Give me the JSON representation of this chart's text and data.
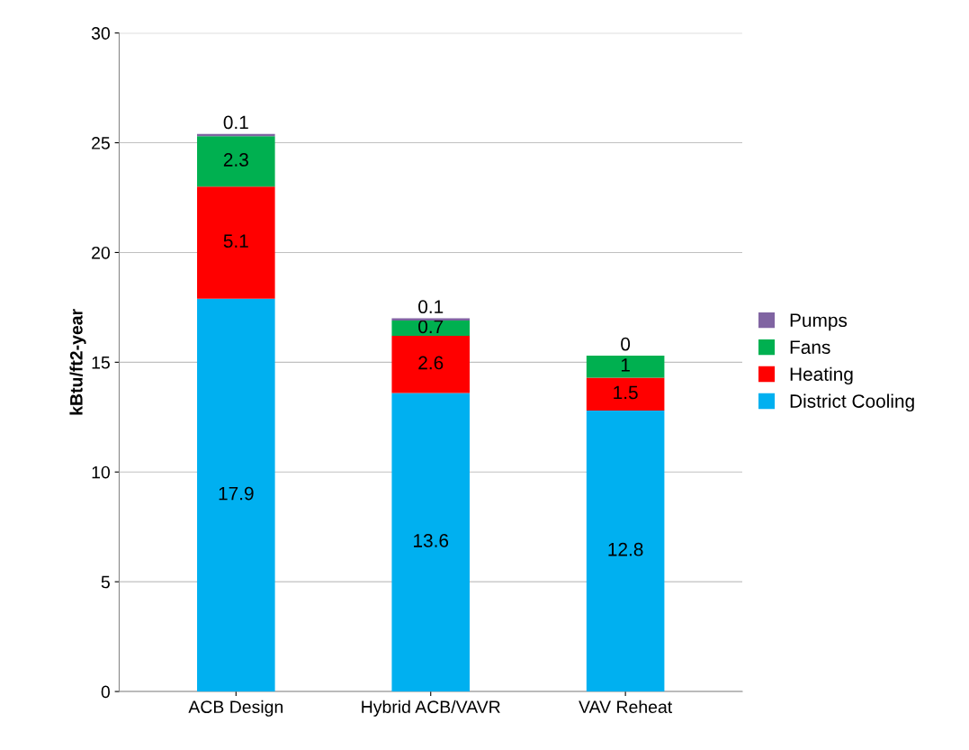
{
  "chart_data": {
    "type": "bar",
    "stacked": true,
    "ylabel": "kBtu/ft2-year",
    "categories": [
      "ACB Design",
      "Hybrid ACB/VAVR",
      "VAV Reheat"
    ],
    "series": [
      {
        "name": "District Cooling",
        "color": "#00b0f0",
        "values": [
          17.9,
          13.6,
          12.8
        ]
      },
      {
        "name": "Heating",
        "color": "#ff0000",
        "values": [
          5.1,
          2.6,
          1.5
        ]
      },
      {
        "name": "Fans",
        "color": "#00b050",
        "values": [
          2.3,
          0.7,
          1
        ]
      },
      {
        "name": "Pumps",
        "color": "#8064a2",
        "values": [
          0.1,
          0.1,
          0
        ]
      }
    ],
    "ylim": [
      0,
      30
    ],
    "yticks": [
      0,
      5,
      10,
      15,
      20,
      25,
      30
    ],
    "grid": "y",
    "legend": "right",
    "data_labels": true
  }
}
